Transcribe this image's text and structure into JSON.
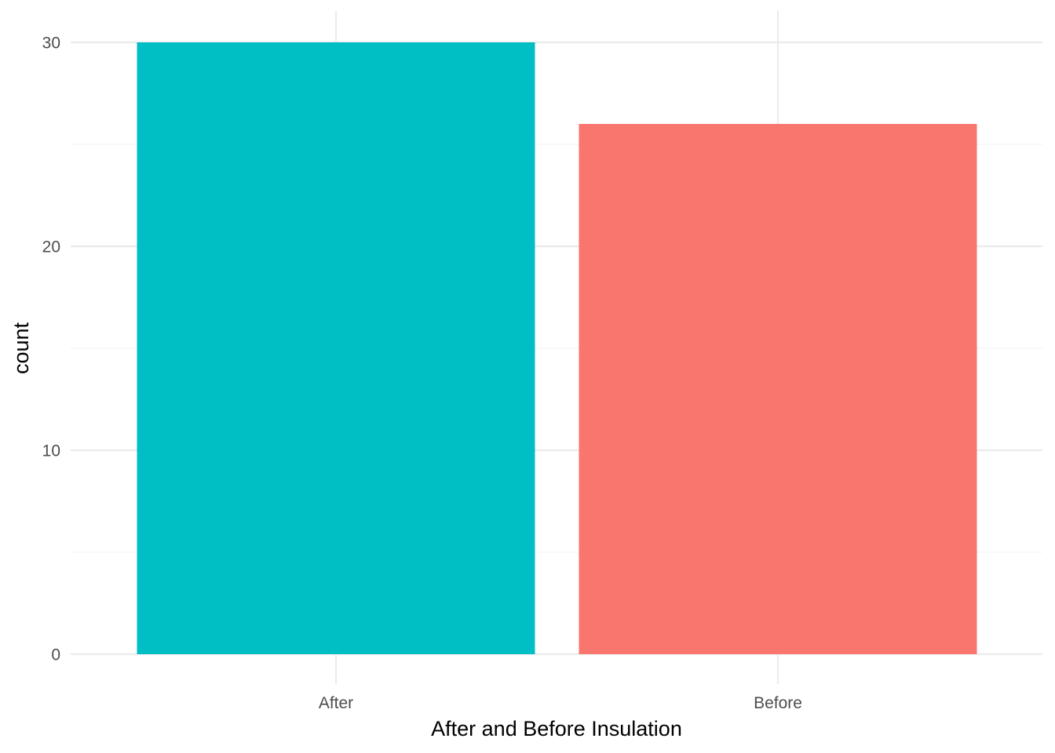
{
  "chart_data": {
    "type": "bar",
    "categories": [
      "After",
      "Before"
    ],
    "values": [
      30,
      26
    ],
    "colors": [
      "#00BFC4",
      "#F8766D"
    ],
    "xlabel": "After and Before Insulation",
    "ylabel": "count",
    "ylim": [
      0,
      30
    ],
    "yticks": [
      0,
      10,
      20,
      30
    ],
    "grid": true,
    "legend": "none"
  }
}
